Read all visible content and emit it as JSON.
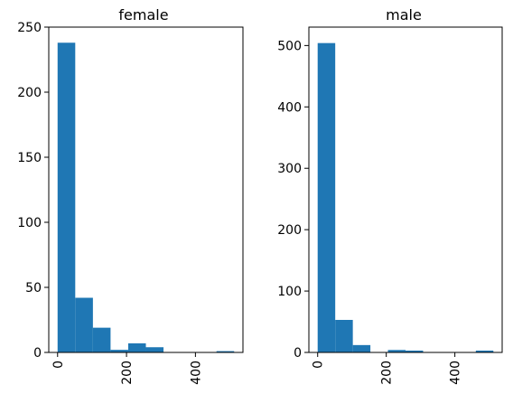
{
  "chart_data": [
    {
      "type": "bar",
      "title": "female",
      "xlabel": "",
      "ylabel": "",
      "bin_edges": [
        0,
        51.2,
        102.5,
        153.7,
        204.9,
        256.2,
        307.4,
        358.6,
        409.8,
        461.1,
        512.3
      ],
      "values": [
        238,
        42,
        19,
        2,
        7,
        4,
        0,
        0,
        0,
        1
      ],
      "xlim": [
        -25.6,
        537.9
      ],
      "ylim": [
        0,
        250
      ],
      "xticks": [
        0,
        200,
        400
      ],
      "xtick_labels": [
        "0",
        "200",
        "400"
      ],
      "yticks": [
        0,
        50,
        100,
        150,
        200,
        250
      ],
      "ytick_labels": [
        "0",
        "50",
        "100",
        "150",
        "200",
        "250"
      ],
      "xtick_rotation": 90,
      "grid": false,
      "color": "#1f77b4"
    },
    {
      "type": "bar",
      "title": "male",
      "xlabel": "",
      "ylabel": "",
      "bin_edges": [
        0,
        51.2,
        102.5,
        153.7,
        204.9,
        256.2,
        307.4,
        358.6,
        409.8,
        461.1,
        512.3
      ],
      "values": [
        504,
        53,
        12,
        0,
        4,
        3,
        0,
        0,
        0,
        3
      ],
      "xlim": [
        -25.6,
        537.9
      ],
      "ylim": [
        0,
        530
      ],
      "xticks": [
        0,
        200,
        400
      ],
      "xtick_labels": [
        "0",
        "200",
        "400"
      ],
      "yticks": [
        0,
        100,
        200,
        300,
        400,
        500
      ],
      "ytick_labels": [
        "0",
        "100",
        "200",
        "300",
        "400",
        "500"
      ],
      "xtick_rotation": 90,
      "grid": false,
      "color": "#1f77b4"
    }
  ]
}
